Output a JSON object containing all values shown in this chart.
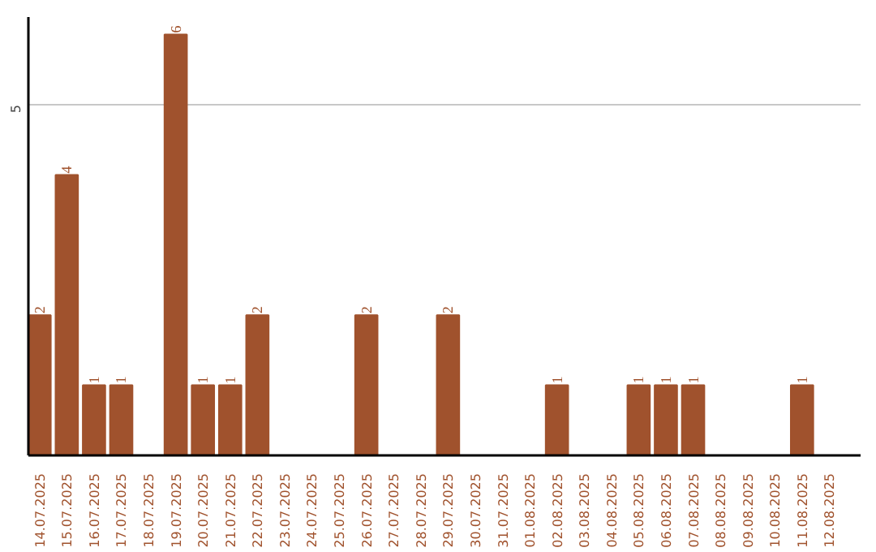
{
  "chart_data": {
    "type": "bar",
    "categories": [
      "14.07.2025",
      "15.07.2025",
      "16.07.2025",
      "17.07.2025",
      "18.07.2025",
      "19.07.2025",
      "20.07.2025",
      "21.07.2025",
      "22.07.2025",
      "23.07.2025",
      "24.07.2025",
      "25.07.2025",
      "26.07.2025",
      "27.07.2025",
      "28.07.2025",
      "29.07.2025",
      "30.07.2025",
      "31.07.2025",
      "01.08.2025",
      "02.08.2025",
      "03.08.2025",
      "04.08.2025",
      "05.08.2025",
      "06.08.2025",
      "07.08.2025",
      "08.08.2025",
      "09.08.2025",
      "10.08.2025",
      "11.08.2025",
      "12.08.2025"
    ],
    "values": [
      2,
      4,
      1,
      1,
      0,
      6,
      1,
      1,
      2,
      0,
      0,
      0,
      2,
      0,
      0,
      2,
      0,
      0,
      0,
      1,
      0,
      0,
      1,
      1,
      1,
      0,
      0,
      0,
      1,
      0
    ],
    "value_labels": [
      "2",
      "4",
      "1",
      "1",
      null,
      "6",
      "1",
      "1",
      "2",
      null,
      null,
      null,
      "2",
      null,
      null,
      "2",
      null,
      null,
      null,
      "1",
      null,
      null,
      "1",
      "1",
      "1",
      null,
      null,
      null,
      "1",
      null
    ],
    "color": "#a0522d",
    "ylim": [
      0,
      6.25
    ],
    "yticks": [
      5
    ],
    "grid": "y"
  }
}
